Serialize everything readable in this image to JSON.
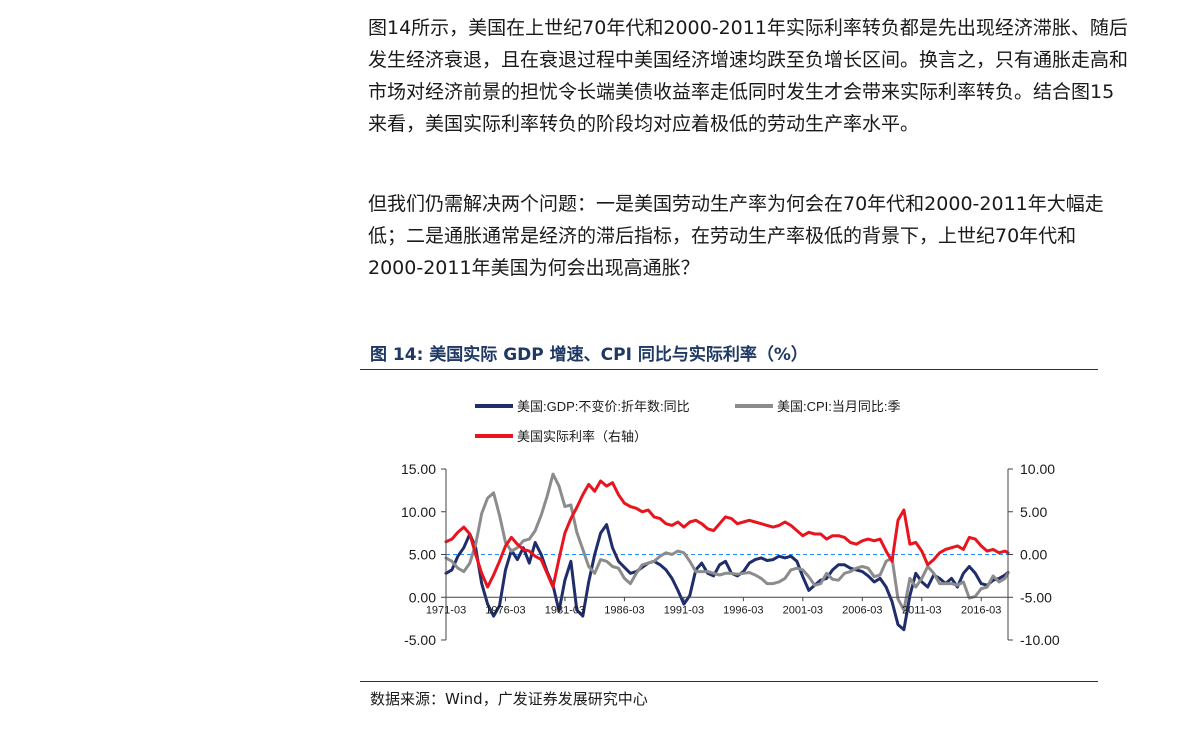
{
  "paragraphs": [
    "图14所示，美国在上世纪70年代和2000-2011年实际利率转负都是先出现经济滞胀、随后发生经济衰退，且在衰退过程中美国经济增速均跌至负增长区间。换言之，只有通胀走高和市场对经济前景的担忧令长端美债收益率走低同时发生才会带来实际利率转负。结合图15来看，美国实际利率转负的阶段均对应着极低的劳动生产率水平。",
    "但我们仍需解决两个问题：一是美国劳动生产率为何会在70年代和2000-2011年大幅走低；二是通胀通常是经济的滞后指标，在劳动生产率极低的背景下，上世纪70年代和2000-2011年美国为何会出现高通胀？"
  ],
  "figure_title": "图 14:  美国实际 GDP 增速、CPI 同比与实际利率（%）",
  "source": "数据来源：Wind，广发证券发展研究中心",
  "chart_data": {
    "type": "line",
    "x_ticks": [
      "1971-03",
      "1976-03",
      "1981-03",
      "1986-03",
      "1991-03",
      "1996-03",
      "2001-03",
      "2006-03",
      "2011-03",
      "2016-03"
    ],
    "x_range": [
      1971.0,
      2018.25
    ],
    "y_left": {
      "ticks": [
        "15.00",
        "10.00",
        "5.00",
        "0.00",
        "-5.00"
      ],
      "range": [
        -5,
        15
      ]
    },
    "y_right": {
      "ticks": [
        "10.00",
        "5.00",
        "0.00",
        "-5.00",
        "-10.00"
      ],
      "range": [
        -10,
        10
      ]
    },
    "grid": false,
    "legend_position": "top",
    "reference_line": {
      "axis": "right",
      "value": 0,
      "style": "dashed",
      "color": "#1e90ff"
    },
    "series": [
      {
        "name": "美国:GDP:不变价:折年数:同比",
        "axis": "left",
        "color": "#1f2d6b",
        "points": [
          [
            1971,
            2.8
          ],
          [
            1971.5,
            3.2
          ],
          [
            1972,
            4.8
          ],
          [
            1972.5,
            5.8
          ],
          [
            1973,
            7.4
          ],
          [
            1973.5,
            5.8
          ],
          [
            1974,
            1.6
          ],
          [
            1974.5,
            -0.8
          ],
          [
            1975,
            -2.2
          ],
          [
            1975.5,
            -1.0
          ],
          [
            1976,
            3.2
          ],
          [
            1976.5,
            5.5
          ],
          [
            1977,
            4.4
          ],
          [
            1977.5,
            5.8
          ],
          [
            1978,
            4.0
          ],
          [
            1978.5,
            6.4
          ],
          [
            1979,
            5.0
          ],
          [
            1979.5,
            3.0
          ],
          [
            1980,
            1.4
          ],
          [
            1980.5,
            -1.6
          ],
          [
            1981,
            2.0
          ],
          [
            1981.5,
            4.2
          ],
          [
            1982,
            -1.5
          ],
          [
            1982.5,
            -2.2
          ],
          [
            1983,
            1.8
          ],
          [
            1983.5,
            5.0
          ],
          [
            1984,
            7.5
          ],
          [
            1984.5,
            8.5
          ],
          [
            1985,
            5.8
          ],
          [
            1985.5,
            4.2
          ],
          [
            1986,
            3.5
          ],
          [
            1986.5,
            2.8
          ],
          [
            1987,
            3.0
          ],
          [
            1987.5,
            3.5
          ],
          [
            1988,
            4.0
          ],
          [
            1988.5,
            4.2
          ],
          [
            1989,
            3.8
          ],
          [
            1989.5,
            3.2
          ],
          [
            1990,
            2.2
          ],
          [
            1990.5,
            0.8
          ],
          [
            1991,
            -0.8
          ],
          [
            1991.5,
            0.2
          ],
          [
            1992,
            3.2
          ],
          [
            1992.5,
            4.0
          ],
          [
            1993,
            2.8
          ],
          [
            1993.5,
            2.5
          ],
          [
            1994,
            3.8
          ],
          [
            1994.5,
            4.2
          ],
          [
            1995,
            2.8
          ],
          [
            1995.5,
            2.5
          ],
          [
            1996,
            3.0
          ],
          [
            1996.5,
            4.0
          ],
          [
            1997,
            4.4
          ],
          [
            1997.5,
            4.6
          ],
          [
            1998,
            4.3
          ],
          [
            1998.5,
            4.4
          ],
          [
            1999,
            4.8
          ],
          [
            1999.5,
            4.6
          ],
          [
            2000,
            4.8
          ],
          [
            2000.5,
            4.2
          ],
          [
            2001,
            2.4
          ],
          [
            2001.5,
            0.8
          ],
          [
            2002,
            1.4
          ],
          [
            2002.5,
            2.0
          ],
          [
            2003,
            2.2
          ],
          [
            2003.5,
            3.2
          ],
          [
            2004,
            3.8
          ],
          [
            2004.5,
            3.8
          ],
          [
            2005,
            3.4
          ],
          [
            2005.5,
            3.2
          ],
          [
            2006,
            3.0
          ],
          [
            2006.5,
            2.5
          ],
          [
            2007,
            1.8
          ],
          [
            2007.5,
            2.2
          ],
          [
            2008,
            1.2
          ],
          [
            2008.5,
            -0.5
          ],
          [
            2009,
            -3.2
          ],
          [
            2009.5,
            -3.8
          ],
          [
            2010,
            0.2
          ],
          [
            2010.5,
            2.8
          ],
          [
            2011,
            1.8
          ],
          [
            2011.5,
            1.2
          ],
          [
            2012,
            2.6
          ],
          [
            2012.5,
            2.2
          ],
          [
            2013,
            1.6
          ],
          [
            2013.5,
            2.2
          ],
          [
            2014,
            1.2
          ],
          [
            2014.5,
            2.8
          ],
          [
            2015,
            3.6
          ],
          [
            2015.5,
            2.8
          ],
          [
            2016,
            1.6
          ],
          [
            2016.5,
            1.4
          ],
          [
            2017,
            2.0
          ],
          [
            2017.5,
            2.2
          ],
          [
            2018,
            2.6
          ],
          [
            2018.25,
            2.9
          ]
        ]
      },
      {
        "name": "美国:CPI:当月同比:季",
        "axis": "left",
        "color": "#8c8c8c",
        "points": [
          [
            1971,
            4.6
          ],
          [
            1971.5,
            4.2
          ],
          [
            1972,
            3.4
          ],
          [
            1972.5,
            3.0
          ],
          [
            1973,
            4.0
          ],
          [
            1973.5,
            6.2
          ],
          [
            1974,
            9.8
          ],
          [
            1974.5,
            11.6
          ],
          [
            1975,
            12.2
          ],
          [
            1975.5,
            9.6
          ],
          [
            1976,
            6.4
          ],
          [
            1976.5,
            5.4
          ],
          [
            1977,
            5.8
          ],
          [
            1977.5,
            6.6
          ],
          [
            1978,
            6.8
          ],
          [
            1978.5,
            7.8
          ],
          [
            1979,
            9.6
          ],
          [
            1979.5,
            11.8
          ],
          [
            1980,
            14.4
          ],
          [
            1980.5,
            13.0
          ],
          [
            1981,
            10.6
          ],
          [
            1981.5,
            10.8
          ],
          [
            1982,
            7.6
          ],
          [
            1982.5,
            5.6
          ],
          [
            1983,
            3.6
          ],
          [
            1983.5,
            2.8
          ],
          [
            1984,
            4.4
          ],
          [
            1984.5,
            4.2
          ],
          [
            1985,
            3.6
          ],
          [
            1985.5,
            3.4
          ],
          [
            1986,
            2.2
          ],
          [
            1986.5,
            1.6
          ],
          [
            1987,
            2.8
          ],
          [
            1987.5,
            3.8
          ],
          [
            1988,
            4.0
          ],
          [
            1988.5,
            4.2
          ],
          [
            1989,
            4.8
          ],
          [
            1989.5,
            5.2
          ],
          [
            1990,
            5.0
          ],
          [
            1990.5,
            5.4
          ],
          [
            1991,
            5.2
          ],
          [
            1991.5,
            4.2
          ],
          [
            1992,
            3.0
          ],
          [
            1992.5,
            3.0
          ],
          [
            1993,
            3.0
          ],
          [
            1993.5,
            2.8
          ],
          [
            1994,
            2.6
          ],
          [
            1994.5,
            2.8
          ],
          [
            1995,
            2.8
          ],
          [
            1995.5,
            2.7
          ],
          [
            1996,
            2.8
          ],
          [
            1996.5,
            2.9
          ],
          [
            1997,
            2.6
          ],
          [
            1997.5,
            2.2
          ],
          [
            1998,
            1.6
          ],
          [
            1998.5,
            1.6
          ],
          [
            1999,
            1.8
          ],
          [
            1999.5,
            2.2
          ],
          [
            2000,
            3.2
          ],
          [
            2000.5,
            3.4
          ],
          [
            2001,
            3.2
          ],
          [
            2001.5,
            2.4
          ],
          [
            2002,
            1.4
          ],
          [
            2002.5,
            1.6
          ],
          [
            2003,
            2.8
          ],
          [
            2003.5,
            2.1
          ],
          [
            2004,
            2.0
          ],
          [
            2004.5,
            2.8
          ],
          [
            2005,
            3.0
          ],
          [
            2005.5,
            3.4
          ],
          [
            2006,
            3.6
          ],
          [
            2006.5,
            3.4
          ],
          [
            2007,
            2.4
          ],
          [
            2007.5,
            2.6
          ],
          [
            2008,
            4.2
          ],
          [
            2008.5,
            4.6
          ],
          [
            2009,
            -0.2
          ],
          [
            2009.5,
            -1.5
          ],
          [
            2010,
            2.2
          ],
          [
            2010.5,
            1.2
          ],
          [
            2011,
            2.2
          ],
          [
            2011.5,
            3.6
          ],
          [
            2012,
            2.8
          ],
          [
            2012.5,
            1.6
          ],
          [
            2013,
            1.6
          ],
          [
            2013.5,
            1.6
          ],
          [
            2014,
            1.4
          ],
          [
            2014.5,
            1.8
          ],
          [
            2015,
            -0.1
          ],
          [
            2015.5,
            0.1
          ],
          [
            2016,
            1.0
          ],
          [
            2016.5,
            1.2
          ],
          [
            2017,
            2.5
          ],
          [
            2017.5,
            1.8
          ],
          [
            2018,
            2.2
          ],
          [
            2018.25,
            2.8
          ]
        ]
      },
      {
        "name": "美国实际利率（右轴）",
        "axis": "right",
        "color": "#e8141e",
        "points": [
          [
            1971,
            1.5
          ],
          [
            1971.5,
            1.8
          ],
          [
            1972,
            2.6
          ],
          [
            1972.5,
            3.2
          ],
          [
            1973,
            2.4
          ],
          [
            1973.5,
            0.0
          ],
          [
            1974,
            -2.2
          ],
          [
            1974.5,
            -3.8
          ],
          [
            1975,
            -2.4
          ],
          [
            1975.5,
            -0.8
          ],
          [
            1976,
            1.0
          ],
          [
            1976.5,
            2.0
          ],
          [
            1977,
            1.2
          ],
          [
            1977.5,
            0.6
          ],
          [
            1978,
            0.4
          ],
          [
            1978.5,
            -0.2
          ],
          [
            1979,
            -0.6
          ],
          [
            1979.5,
            -2.2
          ],
          [
            1980,
            -3.8
          ],
          [
            1980.5,
            -0.5
          ],
          [
            1981,
            2.5
          ],
          [
            1981.5,
            4.2
          ],
          [
            1982,
            5.5
          ],
          [
            1982.5,
            7.0
          ],
          [
            1983,
            8.2
          ],
          [
            1983.5,
            7.4
          ],
          [
            1984,
            8.6
          ],
          [
            1984.5,
            8.0
          ],
          [
            1985,
            8.4
          ],
          [
            1985.5,
            7.0
          ],
          [
            1986,
            6.0
          ],
          [
            1986.5,
            5.6
          ],
          [
            1987,
            5.4
          ],
          [
            1987.5,
            5.0
          ],
          [
            1988,
            5.2
          ],
          [
            1988.5,
            4.4
          ],
          [
            1989,
            4.2
          ],
          [
            1989.5,
            3.6
          ],
          [
            1990,
            3.4
          ],
          [
            1990.5,
            3.8
          ],
          [
            1991,
            3.2
          ],
          [
            1991.5,
            3.8
          ],
          [
            1992,
            4.0
          ],
          [
            1992.5,
            3.6
          ],
          [
            1993,
            3.0
          ],
          [
            1993.5,
            2.8
          ],
          [
            1994,
            3.6
          ],
          [
            1994.5,
            4.4
          ],
          [
            1995,
            4.2
          ],
          [
            1995.5,
            3.6
          ],
          [
            1996,
            3.8
          ],
          [
            1996.5,
            4.0
          ],
          [
            1997,
            3.8
          ],
          [
            1997.5,
            3.6
          ],
          [
            1998,
            3.4
          ],
          [
            1998.5,
            3.2
          ],
          [
            1999,
            3.4
          ],
          [
            1999.5,
            3.8
          ],
          [
            2000,
            3.4
          ],
          [
            2000.5,
            2.8
          ],
          [
            2001,
            2.2
          ],
          [
            2001.5,
            2.6
          ],
          [
            2002,
            2.4
          ],
          [
            2002.5,
            2.4
          ],
          [
            2003,
            1.8
          ],
          [
            2003.5,
            2.2
          ],
          [
            2004,
            2.2
          ],
          [
            2004.5,
            2.0
          ],
          [
            2005,
            1.4
          ],
          [
            2005.5,
            1.2
          ],
          [
            2006,
            1.6
          ],
          [
            2006.5,
            1.8
          ],
          [
            2007,
            1.6
          ],
          [
            2007.5,
            1.8
          ],
          [
            2008,
            0.4
          ],
          [
            2008.5,
            -0.8
          ],
          [
            2009,
            4.0
          ],
          [
            2009.5,
            5.2
          ],
          [
            2010,
            1.2
          ],
          [
            2010.5,
            1.4
          ],
          [
            2011,
            0.4
          ],
          [
            2011.5,
            -1.2
          ],
          [
            2012,
            -0.6
          ],
          [
            2012.5,
            0.2
          ],
          [
            2013,
            0.6
          ],
          [
            2013.5,
            0.8
          ],
          [
            2014,
            1.0
          ],
          [
            2014.5,
            0.6
          ],
          [
            2015,
            2.0
          ],
          [
            2015.5,
            1.8
          ],
          [
            2016,
            1.0
          ],
          [
            2016.5,
            0.4
          ],
          [
            2017,
            0.6
          ],
          [
            2017.5,
            0.2
          ],
          [
            2018,
            0.4
          ],
          [
            2018.25,
            0.2
          ]
        ]
      }
    ]
  }
}
